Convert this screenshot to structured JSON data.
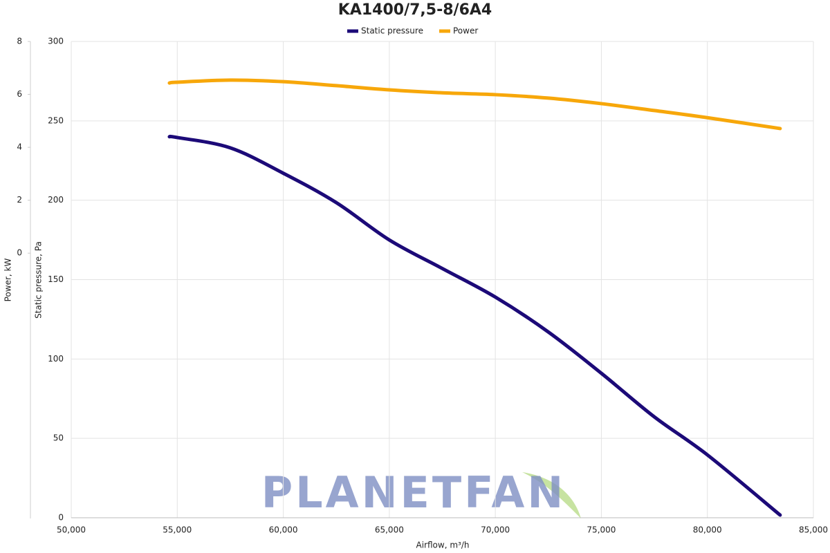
{
  "chart_data": {
    "type": "line",
    "title": "KA1400/7,5-8/6A4",
    "xlabel": "Airflow, m³/h",
    "ylabel": "Static pressure, Pa",
    "y2label": "Power, kW",
    "watermark": "PLANETFAN",
    "x": [
      54630,
      55000,
      57500,
      60000,
      62500,
      65000,
      67500,
      70000,
      72500,
      75000,
      77500,
      80000,
      83430
    ],
    "series": [
      {
        "name": "Static pressure",
        "color": "#1c0a78",
        "values": [
          240,
          239.5,
          233,
          217,
          198.5,
          175,
          157,
          139,
          117,
          91,
          63.5,
          39.6,
          1.7
        ]
      },
      {
        "name": "Power",
        "color": "#f7a70a",
        "axis": "y2",
        "values": [
          6.43,
          6.46,
          6.54,
          6.48,
          6.33,
          6.17,
          6.06,
          5.99,
          5.86,
          5.65,
          5.39,
          5.12,
          4.71
        ]
      }
    ],
    "xlim": [
      50000,
      85000
    ],
    "xticks": [
      {
        "value": 50000,
        "label": "50,000"
      },
      {
        "value": 55000,
        "label": "55,000"
      },
      {
        "value": 60000,
        "label": "60,000"
      },
      {
        "value": 65000,
        "label": "65,000"
      },
      {
        "value": 70000,
        "label": "70,000"
      },
      {
        "value": 75000,
        "label": "75,000"
      },
      {
        "value": 80000,
        "label": "80,000"
      },
      {
        "value": 85000,
        "label": "85,000"
      }
    ],
    "ylim": [
      0,
      300
    ],
    "yticks": [
      0,
      50,
      100,
      150,
      200,
      250,
      300
    ],
    "y2lim": [
      -10,
      8
    ],
    "y2ticks": [
      0,
      2,
      4,
      6,
      8
    ],
    "grid": true,
    "legend": "top"
  }
}
